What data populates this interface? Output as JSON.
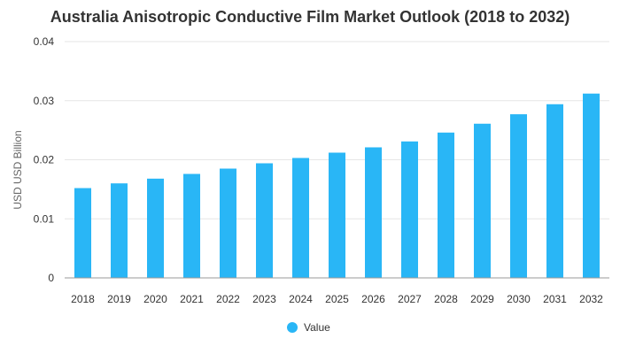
{
  "chart_data": {
    "type": "bar",
    "title": "Australia Anisotropic Conductive Film Market Outlook (2018 to 2032)",
    "xlabel": "",
    "ylabel": "USD USD Billion",
    "categories": [
      "2018",
      "2019",
      "2020",
      "2021",
      "2022",
      "2023",
      "2024",
      "2025",
      "2026",
      "2027",
      "2028",
      "2029",
      "2030",
      "2031",
      "2032"
    ],
    "series": [
      {
        "name": "Value",
        "color": "#29b6f6",
        "values": [
          0.0152,
          0.016,
          0.0168,
          0.0176,
          0.0185,
          0.0194,
          0.0203,
          0.0212,
          0.0221,
          0.0231,
          0.0246,
          0.0261,
          0.0277,
          0.0294,
          0.0312
        ]
      }
    ],
    "ylim": [
      0,
      0.04
    ],
    "yticks": [
      "0",
      "0.01",
      "0.02",
      "0.03",
      "0.04"
    ],
    "ytick_values": [
      0,
      0.01,
      0.02,
      0.03,
      0.04
    ],
    "grid": true,
    "legend_position": "bottom-center"
  }
}
